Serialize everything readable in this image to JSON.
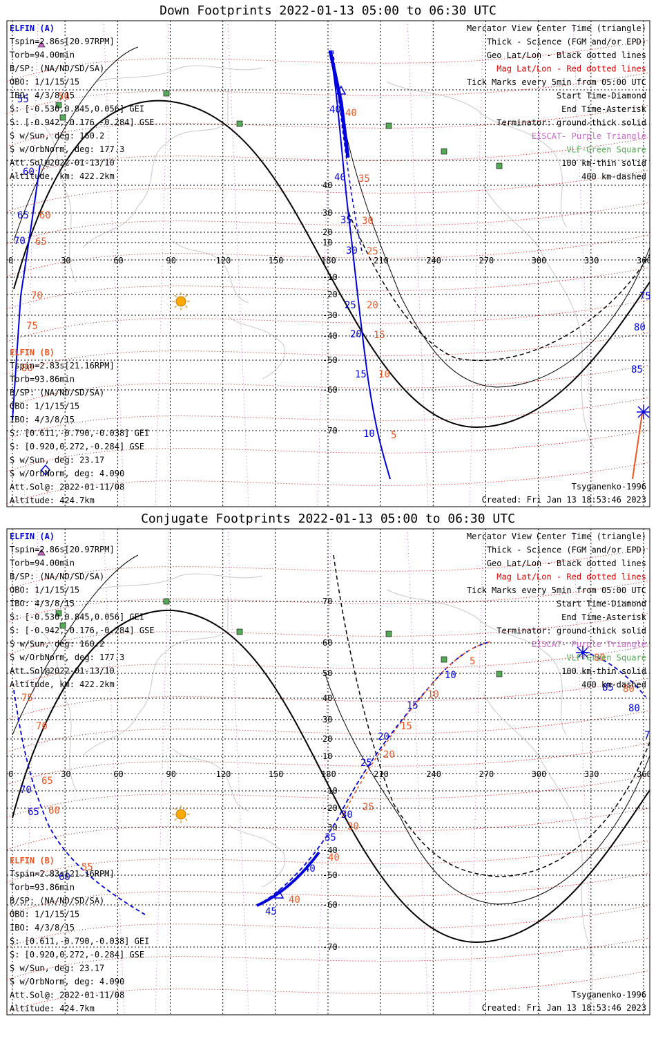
{
  "panels": [
    {
      "id": "down",
      "title": "Down Footprints 2022-01-13 05:00 to 06:30 UTC",
      "lat_ticks": [
        40,
        30,
        20,
        10,
        -10,
        -20,
        -30,
        -40,
        -50,
        -60,
        -70
      ],
      "lat_tick_extra": [
        70,
        60,
        50
      ],
      "lon_ticks": [
        0,
        30,
        60,
        90,
        120,
        150,
        180,
        210,
        240,
        270,
        300,
        330,
        360
      ],
      "info_a": {
        "title": "ELFIN (A)",
        "lines": [
          "Tspin=2.86s[20.97RPM]",
          "Torb=94.00min",
          "B/SP: (NA/ND/SD/SA)",
          "OBO: 1/1/15/15",
          "IBO: 4/3/8/15",
          "S: [-0.530,0.845,0.056] GEI",
          "S: [-0.942,-0.176,-0.284] GSE",
          "S w/Sun, deg: 160.2",
          "S w/OrbNorm, deg: 177.3",
          "Att.Sol@2022-01-13/10",
          "Altitude, km: 422.2km"
        ]
      },
      "info_b": {
        "title": "ELFIN (B)",
        "lines": [
          "Tspin=2.83s[21.16RPM]",
          "Torb=93.86min",
          "B/SP: (NA/ND/SD/SA)",
          "OBO: 1/1/15/15",
          "IBO: 4/3/8/15",
          "S: [0.611,-0.790,-0.038] GEI",
          "S: [0.920,0.272,-0.284] GSE",
          "S w/Sun, deg: 23.17",
          "S w/OrbNorm, deg: 4.090",
          "Att.Sol@: 2022-01-11/08",
          "Altitude: 424.7km"
        ]
      },
      "legend": [
        "Mercator View Center Time (triangle)",
        "Thick - Science (FGM and/or EPD)",
        "Geo Lat/Lon - Black dotted lines",
        "Mag Lat/Lon - Red dotted lines",
        "Tick Marks every 5min from 05:00 UTC",
        "Start Time-Diamond",
        "End Time-Asterisk",
        "Terminator: ground-thick solid",
        "EISCAT- Purple Triangle",
        "VLF-Green Square",
        "100 km-thin solid",
        "400 km-dashed"
      ],
      "model": "Tsyganenko-1996",
      "created": "Created: Fri Jan 13 18:53:46 2023",
      "a_labels": [
        [
          "40",
          477,
          135
        ],
        [
          "40",
          484,
          233
        ],
        [
          "35",
          493,
          295
        ],
        [
          "30",
          501,
          339
        ],
        [
          "25",
          499,
          418
        ],
        [
          "20",
          507,
          460
        ],
        [
          "15",
          514,
          518
        ],
        [
          "10",
          526,
          604
        ],
        [
          "65",
          25,
          288
        ],
        [
          "70",
          20,
          325
        ],
        [
          "60",
          33,
          225
        ],
        [
          "55",
          25,
          120
        ]
      ],
      "b_labels": [
        [
          "40",
          500,
          140
        ],
        [
          "35",
          519,
          235
        ],
        [
          "30",
          524,
          296
        ],
        [
          "25",
          531,
          340
        ],
        [
          "20",
          531,
          418
        ],
        [
          "15",
          541,
          461
        ],
        [
          "10",
          548,
          518
        ],
        [
          "5",
          566,
          606
        ],
        [
          "60",
          57,
          288
        ],
        [
          "65",
          51,
          326
        ],
        [
          "70",
          45,
          404
        ],
        [
          "75",
          38,
          448
        ],
        [
          "80",
          31,
          509
        ],
        [
          "50",
          84,
          116
        ]
      ],
      "right_labels": [
        [
          "75",
          926,
          405,
          "#0000dd"
        ],
        [
          "80",
          918,
          450,
          "#0000dd"
        ],
        [
          "85",
          914,
          511,
          "#0000dd"
        ]
      ]
    },
    {
      "id": "conj",
      "title": "Conjugate Footprints 2022-01-13 05:00 to 06:30 UTC",
      "lat_ticks": [
        70,
        60,
        50,
        40,
        30,
        20,
        10,
        -10,
        -20,
        -30,
        -40,
        -50,
        -60,
        -70
      ],
      "lat_tick_extra": [],
      "lon_ticks": [
        0,
        30,
        60,
        90,
        120,
        150,
        180,
        210,
        240,
        270,
        300,
        330,
        360
      ],
      "info_a": {
        "title": "ELFIN (A)",
        "lines": [
          "Tspin=2.86s[20.97RPM]",
          "Torb=94.00min",
          "B/SP: (NA/ND/SD/SA)",
          "OBO: 1/1/15/15",
          "IBO: 4/3/8/15",
          "S: [-0.530,0.845,0.056] GEI",
          "S: [-0.942,-0.176,-0.284] GSE",
          "S w/Sun, deg: 160.2",
          "S w/OrbNorm, deg: 177.3",
          "Att.Sol@2022-01-13/10",
          "Altitude, km: 422.2km"
        ]
      },
      "info_b": {
        "title": "ELFIN (B)",
        "lines": [
          "Tspin=2.83s[21.16RPM]",
          "Torb=93.86min",
          "B/SP: (NA/ND/SD/SA)",
          "OBO: 1/1/15/15",
          "IBO: 4/3/8/15",
          "S: [0.611,-0.790,-0.038] GEI",
          "S: [0.920,0.272,-0.284] GSE",
          "S w/Sun, deg: 23.17",
          "S w/OrbNorm, deg: 4.090",
          "Att.Sol@: 2022-01-11/08",
          "Altitude: 424.7km"
        ]
      },
      "legend": [
        "Mercator View Center Time (triangle)",
        "Thick - Science (FGM and/or EPD)",
        "Geo Lat/Lon - Black dotted lines",
        "Mag Lat/Lon - Red dotted lines",
        "Tick Marks every 5min from 05:00 UTC",
        "Start Time-Diamond",
        "End Time-Asterisk",
        "Terminator: ground-thick solid",
        "EISCAT- Purple Triangle",
        "VLF-Green Square",
        "100 km-thin solid",
        "400 km-dashed"
      ],
      "model": "Tsyganenko-1996",
      "created": "Created: Fri Jan 13 18:53:46 2023",
      "a_labels": [
        [
          "45",
          384,
          560
        ],
        [
          "40",
          440,
          498
        ],
        [
          "35",
          470,
          453
        ],
        [
          "30",
          494,
          420
        ],
        [
          "25",
          522,
          345
        ],
        [
          "20",
          547,
          307
        ],
        [
          "15",
          589,
          262
        ],
        [
          "10",
          644,
          218
        ],
        [
          "60",
          85,
          510
        ],
        [
          "65",
          40,
          416
        ],
        [
          "70",
          29,
          384
        ],
        [
          "85",
          872,
          236
        ],
        [
          "80",
          910,
          266
        ],
        [
          "75",
          933,
          305
        ]
      ],
      "b_labels": [
        [
          "40",
          418,
          543
        ],
        [
          "40",
          475,
          482
        ],
        [
          "30",
          503,
          437
        ],
        [
          "25",
          525,
          409
        ],
        [
          "20",
          555,
          333
        ],
        [
          "15",
          580,
          292
        ],
        [
          "10",
          619,
          246
        ],
        [
          "5",
          680,
          198
        ],
        [
          "55",
          118,
          496
        ],
        [
          "60",
          70,
          414
        ],
        [
          "65",
          60,
          371
        ],
        [
          "70",
          52,
          292
        ],
        [
          "75",
          31,
          251
        ],
        [
          "80",
          902,
          238
        ],
        [
          "80",
          860,
          193
        ]
      ],
      "right_labels": []
    }
  ],
  "colors": {
    "elfin_a": "#0000dd",
    "elfin_b": "#ee5522",
    "mag_grid": "#dd0000",
    "eiscat": "#cc66cc",
    "vlf": "#55aa55",
    "sun": "#ffaa00"
  }
}
